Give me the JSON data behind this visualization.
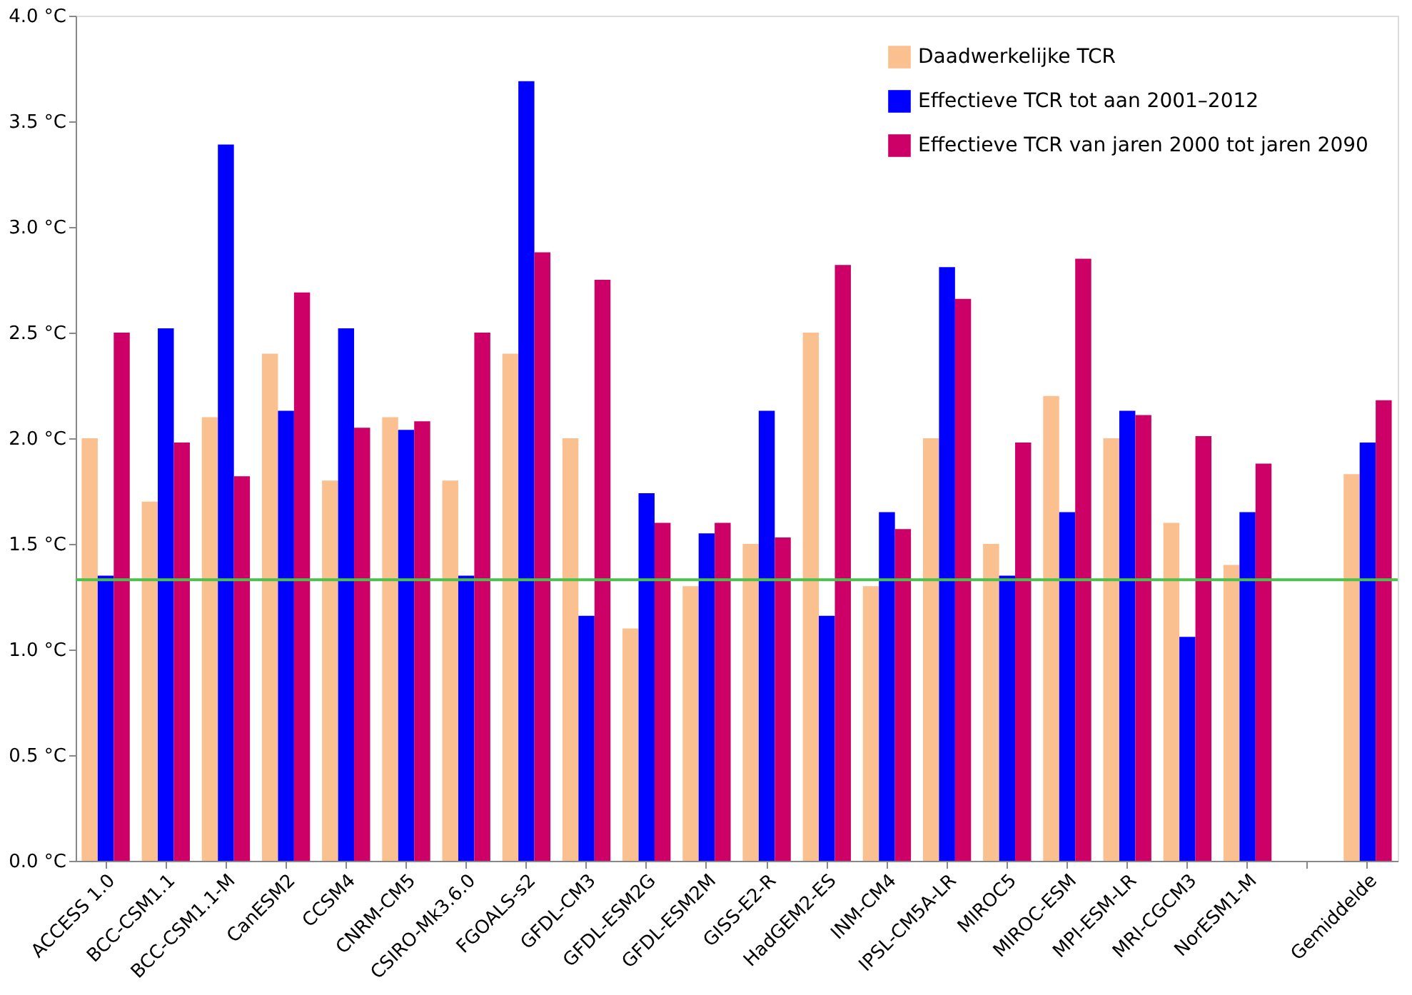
{
  "chart_data": {
    "type": "bar",
    "categories": [
      "ACCESS 1.0",
      "BCC-CSM1.1",
      "BCC-CSM1.1-M",
      "CanESM2",
      "CCSM4",
      "CNRM-CM5",
      "CSIRO-Mk3.6.0",
      "FGOALS-s2",
      "GFDL-CM3",
      "GFDL-ESM2G",
      "GFDL-ESM2M",
      "GISS-E2-R",
      "HadGEM2-ES",
      "INM-CM4",
      "IPSL-CM5A-LR",
      "MIROC5",
      "MIROC-ESM",
      "MPI-ESM-LR",
      "MRI-CGCM3",
      "NorESM1-M",
      null,
      "Gemiddelde"
    ],
    "series": [
      {
        "name": "Daadwerkelijke TCR",
        "color": "#fac090",
        "values": [
          2.0,
          1.7,
          2.1,
          2.4,
          1.8,
          2.1,
          1.8,
          2.4,
          2.0,
          1.1,
          1.3,
          1.5,
          2.5,
          1.3,
          2.0,
          1.5,
          2.2,
          2.0,
          1.6,
          1.4,
          null,
          1.83
        ]
      },
      {
        "name": "Effectieve TCR tot aan 2001–2012",
        "color": "#0000ff",
        "values": [
          1.35,
          2.52,
          3.39,
          2.13,
          2.52,
          2.04,
          1.35,
          3.69,
          1.16,
          1.74,
          1.55,
          2.13,
          1.16,
          1.65,
          2.81,
          1.35,
          1.65,
          2.13,
          1.06,
          1.65,
          null,
          1.98
        ]
      },
      {
        "name": "Effectieve TCR van jaren 2000 tot jaren 2090",
        "color": "#cc0066",
        "values": [
          2.5,
          1.98,
          1.82,
          2.69,
          2.05,
          2.08,
          2.5,
          2.88,
          2.75,
          1.6,
          1.6,
          1.53,
          2.82,
          1.57,
          2.66,
          1.98,
          2.85,
          2.11,
          2.01,
          1.88,
          null,
          2.18
        ]
      }
    ],
    "ylim": [
      0,
      4.0
    ],
    "yticks": [
      {
        "value": 0,
        "label": "0.0 °C"
      },
      {
        "value": 0.5,
        "label": "0.5 °C"
      },
      {
        "value": 1.0,
        "label": "1.0 °C"
      },
      {
        "value": 1.5,
        "label": "1.5 °C"
      },
      {
        "value": 2.0,
        "label": "2.0 °C"
      },
      {
        "value": 2.5,
        "label": "2.5 °C"
      },
      {
        "value": 3.0,
        "label": "3.0 °C"
      },
      {
        "value": 3.5,
        "label": "3.5 °C"
      },
      {
        "value": 4.0,
        "label": "4.0 °C"
      }
    ],
    "ref_lines": [
      {
        "axis": "y",
        "value": 1.33,
        "color": "#4cc04c"
      }
    ],
    "grid": false,
    "legend": "top right"
  }
}
